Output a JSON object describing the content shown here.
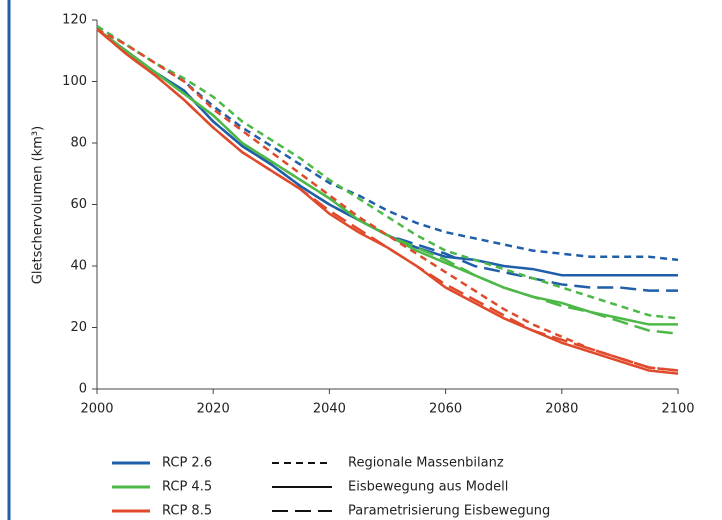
{
  "chart_data": {
    "type": "line",
    "y_label": "Gletschervolumen (km³)",
    "x": [
      2000,
      2005,
      2010,
      2015,
      2020,
      2025,
      2030,
      2035,
      2040,
      2045,
      2050,
      2055,
      2060,
      2065,
      2070,
      2075,
      2080,
      2085,
      2090,
      2095,
      2100
    ],
    "xlim": [
      2000,
      2100
    ],
    "xticks": [
      2000,
      2020,
      2040,
      2060,
      2080,
      2100
    ],
    "ylim": [
      0,
      120
    ],
    "yticks": [
      0,
      20,
      40,
      60,
      80,
      100,
      120
    ],
    "methods": [
      {
        "name": "Regionale Massenbilanz",
        "dash": "7 5"
      },
      {
        "name": "Eisbewegung aus Modell",
        "dash": "none"
      },
      {
        "name": "Parametrisierung Eisbewegung",
        "dash": "16 7"
      }
    ],
    "scenarios": [
      {
        "name": "RCP 2.6",
        "color": "#1f5ea8",
        "values": [
          [
            118,
            112,
            106,
            100,
            92,
            85,
            79,
            73,
            67,
            63,
            58,
            54,
            51,
            49,
            47,
            45,
            44,
            43,
            43,
            43,
            42
          ],
          [
            117,
            110,
            103,
            97,
            87,
            79,
            73,
            66,
            60,
            55,
            50,
            46,
            43,
            42,
            40,
            39,
            37,
            37,
            37,
            37,
            37
          ],
          [
            117,
            110,
            103,
            97,
            87,
            79,
            73,
            66,
            60,
            55,
            50,
            47,
            44,
            40,
            38,
            36,
            34,
            33,
            33,
            32,
            32
          ]
        ]
      },
      {
        "name": "RCP 4.5",
        "color": "#4cb848",
        "values": [
          [
            118,
            112,
            106,
            101,
            95,
            87,
            81,
            75,
            68,
            62,
            56,
            50,
            45,
            42,
            39,
            36,
            33,
            30,
            27,
            24,
            23
          ],
          [
            117,
            110,
            103,
            96,
            89,
            80,
            74,
            68,
            62,
            55,
            50,
            45,
            41,
            37,
            33,
            30,
            28,
            25,
            23,
            21,
            21
          ],
          [
            117,
            110,
            103,
            96,
            89,
            80,
            74,
            68,
            62,
            55,
            50,
            46,
            42,
            37,
            33,
            30,
            27,
            25,
            22,
            19,
            18
          ]
        ]
      },
      {
        "name": "RCP 8.5",
        "color": "#e04a2c",
        "values": [
          [
            117,
            112,
            106,
            100,
            91,
            84,
            77,
            70,
            63,
            56,
            50,
            44,
            38,
            32,
            26,
            21,
            17,
            13,
            10,
            7,
            6
          ],
          [
            117,
            109,
            102,
            94,
            85,
            77,
            71,
            65,
            57,
            51,
            46,
            40,
            33,
            28,
            23,
            19,
            15,
            12,
            9,
            6,
            5
          ],
          [
            117,
            109,
            102,
            94,
            85,
            77,
            71,
            65,
            58,
            52,
            46,
            40,
            34,
            29,
            24,
            19,
            16,
            13,
            10,
            7,
            6
          ]
        ]
      }
    ]
  }
}
